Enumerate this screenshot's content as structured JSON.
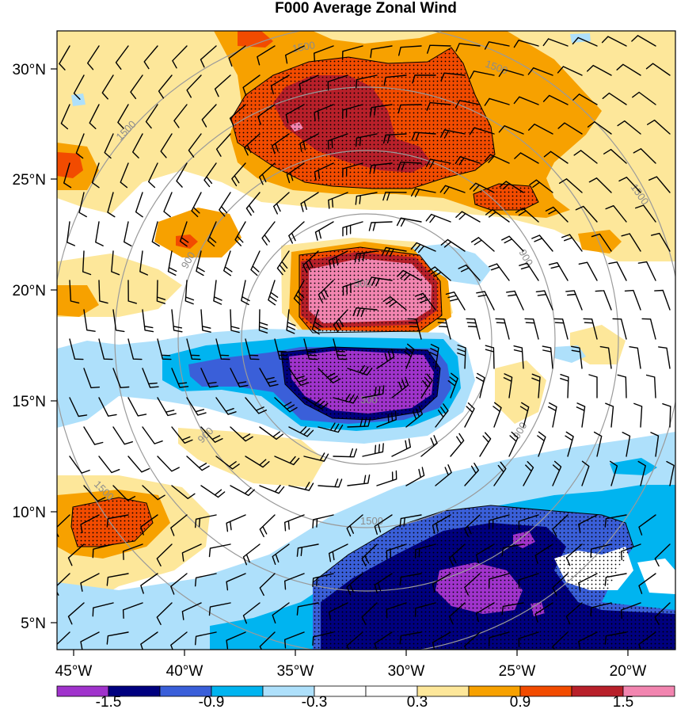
{
  "title": "F000 Average Zonal Wind",
  "axes": {
    "lat_labels": [
      "30°N",
      "25°N",
      "20°N",
      "15°N",
      "10°N",
      "5°N"
    ],
    "lon_labels": [
      "45°W",
      "40°W",
      "35°W",
      "30°W",
      "25°W",
      "20°W"
    ]
  },
  "range_ring_labels": [
    "300",
    "300",
    "900",
    "900",
    "900",
    "900",
    "1500",
    "1500",
    "1500",
    "1500",
    "1500",
    "1500"
  ],
  "colorbar": {
    "colors": [
      "#a033cc",
      "#00007f",
      "#3a5fd9",
      "#00b4f0",
      "#aee0fb",
      "#ffffff",
      "#ffffff",
      "#fde79a",
      "#f7a100",
      "#f24b00",
      "#b8202a",
      "#f285b0"
    ],
    "labels": [
      "-1.5",
      "-0.9",
      "-0.3",
      "0.3",
      "0.9",
      "1.5"
    ]
  },
  "legend_colors": {
    "positive_strong": "#f24b00",
    "positive_max": "#f285b0",
    "negative_strong": "#00007f",
    "negative_max": "#a033cc",
    "ring": "#9a9a9a"
  }
}
